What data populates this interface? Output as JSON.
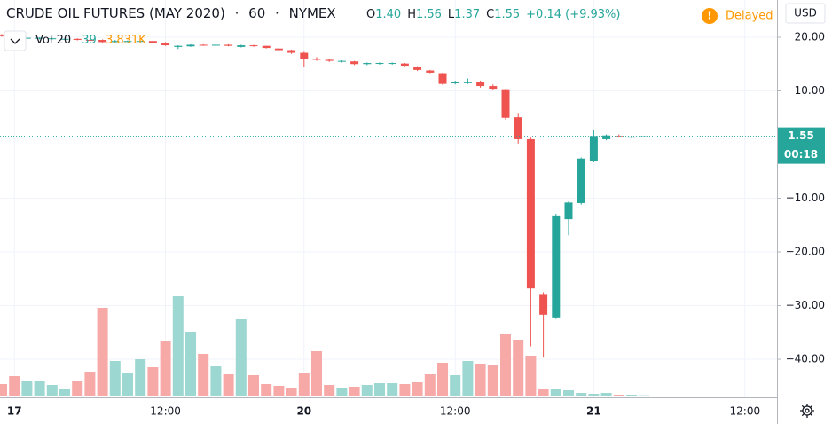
{
  "header": {
    "symbol": "CRUDE OIL FUTURES (MAY 2020)",
    "interval": "60",
    "exchange": "NYMEX",
    "ohlc": [
      {
        "label": "O",
        "value": "1.40"
      },
      {
        "label": "H",
        "value": "1.56"
      },
      {
        "label": "L",
        "value": "1.37"
      },
      {
        "label": "C",
        "value": "1.55"
      }
    ],
    "change": "+0.14 (+9.93%)",
    "status": "Delayed",
    "currency": "USD",
    "volume": {
      "label": "Vol 20",
      "value": "39",
      "ma": "3.831K"
    }
  },
  "chart_data": {
    "type": "candlestick",
    "categories": [
      null,
      "17",
      null,
      null,
      null,
      null,
      null,
      null,
      null,
      null,
      null,
      null,
      null,
      "12:00",
      null,
      null,
      null,
      null,
      null,
      null,
      null,
      null,
      null,
      null,
      "20",
      null,
      null,
      null,
      null,
      null,
      null,
      null,
      null,
      null,
      null,
      null,
      "12:00",
      null,
      null,
      null,
      null,
      null,
      null,
      null,
      null,
      null,
      null,
      "21",
      null,
      null,
      null,
      null,
      null,
      null,
      null,
      null,
      null,
      null,
      null,
      "12:00"
    ],
    "open": [
      20.5,
      20.2,
      19.8,
      19.8,
      19.7,
      19.6,
      19.7,
      19.5,
      19.5,
      19.1,
      19.2,
      19.2,
      19.3,
      19.0,
      18.2,
      18.3,
      18.6,
      18.5,
      18.6,
      18.2,
      18.5,
      18.4,
      17.9,
      17.6,
      17.1,
      16.0,
      15.8,
      15.5,
      15.5,
      15.0,
      15.1,
      15.1,
      15.1,
      14.5,
      13.8,
      13.3,
      11.4,
      11.5,
      11.7,
      10.9,
      10.3,
      5.1,
      1.0,
      -28.0,
      -32.2,
      -13.9,
      -10.9,
      -3.0,
      1.0,
      1.6,
      1.3,
      1.4,
      null,
      null,
      null,
      null,
      null,
      null,
      null,
      null
    ],
    "high": [
      20.6,
      20.3,
      20.0,
      20.0,
      19.9,
      19.8,
      19.8,
      19.7,
      19.6,
      19.5,
      19.4,
      19.4,
      19.4,
      19.1,
      18.5,
      18.7,
      18.7,
      18.7,
      18.7,
      18.6,
      18.6,
      18.4,
      18.0,
      17.7,
      17.3,
      16.3,
      16.0,
      15.7,
      15.6,
      15.3,
      15.3,
      15.3,
      15.2,
      14.6,
      13.9,
      13.4,
      11.9,
      12.3,
      11.9,
      11.2,
      10.4,
      5.9,
      1.3,
      -27.5,
      -12.9,
      -10.6,
      -2.4,
      2.8,
      1.9,
      1.9,
      1.6,
      1.56,
      null,
      null,
      null,
      null,
      null,
      null,
      null,
      null
    ],
    "low": [
      20.1,
      19.8,
      19.7,
      19.6,
      19.6,
      19.5,
      19.4,
      19.3,
      18.9,
      19.0,
      19.1,
      19.0,
      18.9,
      18.4,
      17.8,
      18.2,
      18.4,
      18.4,
      18.3,
      18.1,
      18.2,
      17.9,
      17.5,
      16.9,
      14.4,
      15.6,
      15.4,
      15.3,
      14.8,
      14.8,
      14.9,
      14.9,
      14.6,
      13.7,
      13.3,
      11.1,
      11.2,
      11.3,
      10.6,
      10.1,
      4.6,
      0.2,
      -37.6,
      -39.7,
      -32.5,
      -16.9,
      -11.2,
      -3.3,
      0.8,
      1.3,
      1.2,
      1.37,
      null,
      null,
      null,
      null,
      null,
      null,
      null,
      null
    ],
    "close": [
      20.2,
      19.9,
      19.9,
      19.9,
      19.8,
      19.7,
      19.5,
      19.4,
      19.1,
      19.3,
      19.3,
      19.3,
      19.0,
      18.5,
      18.4,
      18.6,
      18.5,
      18.6,
      18.4,
      18.5,
      18.4,
      18.0,
      17.6,
      17.1,
      16.0,
      15.8,
      15.6,
      15.6,
      15.0,
      15.2,
      15.2,
      15.2,
      14.7,
      13.9,
      13.4,
      11.3,
      11.6,
      11.6,
      10.9,
      10.4,
      5.0,
      1.0,
      -26.8,
      -31.7,
      -13.2,
      -10.8,
      -2.6,
      1.6,
      1.7,
      1.4,
      1.5,
      1.55,
      null,
      null,
      null,
      null,
      null,
      null,
      null,
      null
    ],
    "volume": [
      1300,
      2200,
      1700,
      1600,
      1200,
      800,
      1600,
      2700,
      9900,
      3900,
      2500,
      4100,
      3200,
      6200,
      11200,
      7200,
      4700,
      3300,
      2400,
      8600,
      2300,
      1300,
      1100,
      900,
      2600,
      5000,
      1200,
      900,
      1000,
      1200,
      1400,
      1400,
      1300,
      1500,
      2400,
      3700,
      2300,
      3900,
      3600,
      3400,
      6900,
      6300,
      4500,
      800,
      800,
      600,
      300,
      200,
      300,
      100,
      100,
      39,
      null,
      null,
      null,
      null,
      null,
      null,
      null,
      null
    ],
    "up_color": "#26a69a",
    "down_color": "#ef5350",
    "volume_up_color": "#9cd7d1",
    "volume_down_color": "#f7a9a7",
    "ylim": [
      -47.1,
      26.94
    ],
    "yticks": [
      {
        "value": 20,
        "label": "20.00"
      },
      {
        "value": 10,
        "label": "10.00"
      },
      {
        "value": -10,
        "label": "−10.00"
      },
      {
        "value": -20,
        "label": "−20.00"
      },
      {
        "value": -30,
        "label": "−30.00"
      },
      {
        "value": -40,
        "label": "−40.00"
      }
    ],
    "grid": true,
    "last_price": {
      "value": 1.55,
      "label": "1.55"
    },
    "countdown": "00:18"
  }
}
